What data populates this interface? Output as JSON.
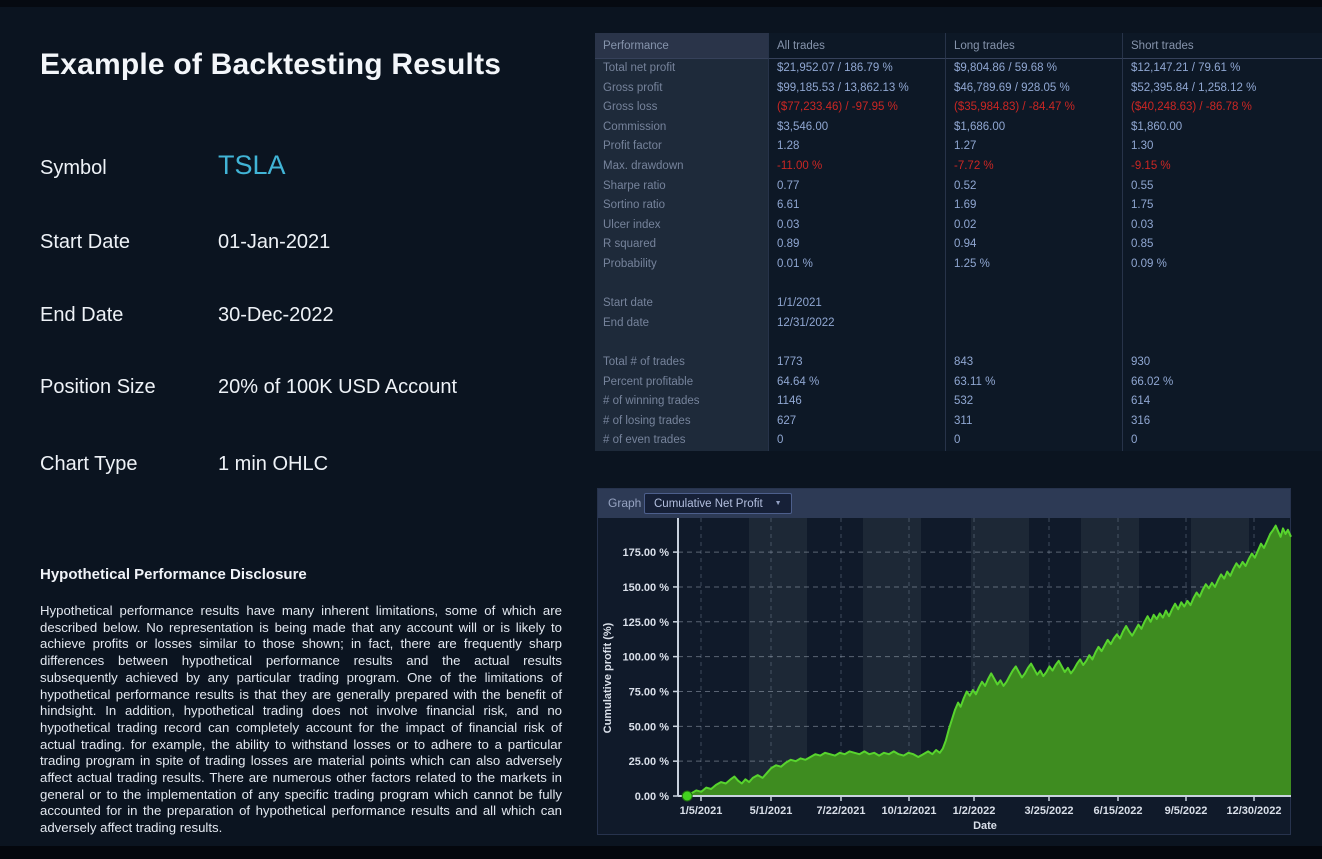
{
  "left_panel": {
    "title": "Example of Backtesting Results",
    "fields": [
      {
        "label": "Symbol",
        "value": "TSLA"
      },
      {
        "label": "Start Date",
        "value": "01-Jan-2021"
      },
      {
        "label": "End Date",
        "value": "30-Dec-2022"
      },
      {
        "label": "Position Size",
        "value": "20% of 100K USD Account"
      },
      {
        "label": "Chart Type",
        "value": "1 min OHLC"
      }
    ],
    "disclosure_title": "Hypothetical Performance Disclosure",
    "disclosure_body": "Hypothetical performance results have many inherent limitations, some of which are described below. No representation is being made that any account will or is likely to achieve profits or losses similar to those shown; in fact, there are frequently sharp differences between hypothetical performance results and the actual results subsequently achieved by any particular trading program. One of the limitations of hypothetical performance results is that they are generally prepared with the benefit of hindsight. In addition, hypothetical trading does not involve financial risk, and no hypothetical trading record can completely account for the impact of financial risk of actual trading. for example, the ability to withstand losses or to adhere to a particular trading program in spite of trading losses are material points which can also adversely affect actual trading results. There are numerous other factors related to the markets in general or to the implementation of any specific trading program which cannot be fully accounted for in the preparation of hypothetical performance results and all which can adversely affect trading results."
  },
  "performance_table": {
    "columns": [
      "Performance",
      "All trades",
      "Long trades",
      "Short trades"
    ],
    "rows": [
      {
        "label": "Total net profit",
        "values": [
          "$21,952.07 / 186.79 %",
          "$9,804.86 / 59.68 %",
          "$12,147.21 / 79.61 %"
        ]
      },
      {
        "label": "Gross profit",
        "values": [
          "$99,185.53 / 13,862.13 %",
          "$46,789.69 / 928.05 %",
          "$52,395.84 / 1,258.12 %"
        ]
      },
      {
        "label": "Gross loss",
        "values": [
          "($77,233.46) / -97.95 %",
          "($35,984.83) / -84.47 %",
          "($40,248.63) / -86.78 %"
        ],
        "red": true
      },
      {
        "label": "Commission",
        "values": [
          "$3,546.00",
          "$1,686.00",
          "$1,860.00"
        ]
      },
      {
        "label": "Profit factor",
        "values": [
          "1.28",
          "1.27",
          "1.30"
        ]
      },
      {
        "label": "Max. drawdown",
        "values": [
          "-11.00 %",
          "-7.72 %",
          "-9.15 %"
        ],
        "red": true
      },
      {
        "label": "Sharpe ratio",
        "values": [
          "0.77",
          "0.52",
          "0.55"
        ]
      },
      {
        "label": "Sortino ratio",
        "values": [
          "6.61",
          "1.69",
          "1.75"
        ]
      },
      {
        "label": "Ulcer index",
        "values": [
          "0.03",
          "0.02",
          "0.03"
        ]
      },
      {
        "label": "R squared",
        "values": [
          "0.89",
          "0.94",
          "0.85"
        ]
      },
      {
        "label": "Probability",
        "values": [
          "0.01 %",
          "1.25 %",
          "0.09 %"
        ]
      },
      {
        "label": "",
        "values": [
          "",
          "",
          ""
        ]
      },
      {
        "label": "Start date",
        "values": [
          "1/1/2021",
          "",
          ""
        ]
      },
      {
        "label": "End date",
        "values": [
          "12/31/2022",
          "",
          ""
        ]
      },
      {
        "label": "",
        "values": [
          "",
          "",
          ""
        ]
      },
      {
        "label": "Total # of trades",
        "values": [
          "1773",
          "843",
          "930"
        ]
      },
      {
        "label": "Percent profitable",
        "values": [
          "64.64 %",
          "63.11 %",
          "66.02 %"
        ]
      },
      {
        "label": "# of winning trades",
        "values": [
          "1146",
          "532",
          "614"
        ]
      },
      {
        "label": "# of losing trades",
        "values": [
          "627",
          "311",
          "316"
        ]
      },
      {
        "label": "# of even trades",
        "values": [
          "0",
          "0",
          "0"
        ]
      }
    ]
  },
  "graph_panel": {
    "label": "Graph",
    "dropdown_value": "Cumulative Net Profit",
    "dropdown_caret": "▼"
  },
  "chart_data": {
    "type": "area",
    "title": "Cumulative Net Profit",
    "xlabel": "Date",
    "ylabel": "Cumulative profit (%)",
    "xticklabels": [
      "1/5/2021",
      "5/1/2021",
      "7/22/2021",
      "10/12/2021",
      "1/2/2022",
      "3/25/2022",
      "6/15/2022",
      "9/5/2022",
      "12/30/2022"
    ],
    "yticklabels": [
      "0.00 %",
      "25.00 %",
      "50.00 %",
      "75.00 %",
      "100.00 %",
      "125.00 %",
      "150.00 %",
      "175.00 %"
    ],
    "ytickvalues": [
      0,
      25,
      50,
      75,
      100,
      125,
      150,
      175
    ],
    "ylim": [
      0,
      199
    ],
    "grid": "dashed",
    "legend": false,
    "x_units": "fraction of plot width, trading days from 1/1/2021 to 12/30/2022",
    "start_marker": {
      "x": 0.015,
      "y": 0
    },
    "end_value_pct": 186.79,
    "series": [
      {
        "name": "Cumulative Net Profit",
        "points": [
          [
            0.015,
            0
          ],
          [
            0.022,
            2
          ],
          [
            0.03,
            4
          ],
          [
            0.038,
            3
          ],
          [
            0.046,
            6
          ],
          [
            0.054,
            5
          ],
          [
            0.062,
            8
          ],
          [
            0.07,
            10
          ],
          [
            0.078,
            9
          ],
          [
            0.086,
            12
          ],
          [
            0.092,
            14
          ],
          [
            0.098,
            11
          ],
          [
            0.104,
            9
          ],
          [
            0.11,
            12
          ],
          [
            0.116,
            10
          ],
          [
            0.122,
            13
          ],
          [
            0.13,
            15
          ],
          [
            0.138,
            13
          ],
          [
            0.146,
            17
          ],
          [
            0.152,
            20
          ],
          [
            0.16,
            22
          ],
          [
            0.168,
            21
          ],
          [
            0.176,
            24
          ],
          [
            0.184,
            26
          ],
          [
            0.192,
            25
          ],
          [
            0.2,
            27
          ],
          [
            0.208,
            26
          ],
          [
            0.216,
            28
          ],
          [
            0.224,
            30
          ],
          [
            0.232,
            29
          ],
          [
            0.24,
            31
          ],
          [
            0.248,
            30
          ],
          [
            0.256,
            29
          ],
          [
            0.264,
            31
          ],
          [
            0.272,
            30
          ],
          [
            0.28,
            32
          ],
          [
            0.288,
            31
          ],
          [
            0.296,
            30
          ],
          [
            0.304,
            32
          ],
          [
            0.312,
            30
          ],
          [
            0.32,
            31
          ],
          [
            0.328,
            29
          ],
          [
            0.336,
            31
          ],
          [
            0.344,
            30
          ],
          [
            0.352,
            32
          ],
          [
            0.36,
            30
          ],
          [
            0.368,
            29
          ],
          [
            0.376,
            31
          ],
          [
            0.384,
            30
          ],
          [
            0.392,
            28
          ],
          [
            0.4,
            30
          ],
          [
            0.408,
            32
          ],
          [
            0.415,
            30
          ],
          [
            0.421,
            33
          ],
          [
            0.427,
            31
          ],
          [
            0.432,
            34
          ],
          [
            0.437,
            40
          ],
          [
            0.442,
            48
          ],
          [
            0.447,
            55
          ],
          [
            0.452,
            62
          ],
          [
            0.457,
            67
          ],
          [
            0.461,
            64
          ],
          [
            0.466,
            70
          ],
          [
            0.471,
            75
          ],
          [
            0.476,
            72
          ],
          [
            0.481,
            76
          ],
          [
            0.486,
            73
          ],
          [
            0.491,
            78
          ],
          [
            0.496,
            82
          ],
          [
            0.501,
            79
          ],
          [
            0.506,
            84
          ],
          [
            0.511,
            88
          ],
          [
            0.516,
            84
          ],
          [
            0.521,
            80
          ],
          [
            0.526,
            83
          ],
          [
            0.531,
            79
          ],
          [
            0.536,
            82
          ],
          [
            0.541,
            86
          ],
          [
            0.546,
            90
          ],
          [
            0.551,
            93
          ],
          [
            0.556,
            89
          ],
          [
            0.561,
            85
          ],
          [
            0.566,
            88
          ],
          [
            0.571,
            92
          ],
          [
            0.576,
            95
          ],
          [
            0.581,
            91
          ],
          [
            0.586,
            87
          ],
          [
            0.591,
            90
          ],
          [
            0.596,
            86
          ],
          [
            0.601,
            89
          ],
          [
            0.606,
            93
          ],
          [
            0.611,
            90
          ],
          [
            0.616,
            94
          ],
          [
            0.621,
            97
          ],
          [
            0.626,
            93
          ],
          [
            0.631,
            89
          ],
          [
            0.636,
            92
          ],
          [
            0.641,
            88
          ],
          [
            0.646,
            91
          ],
          [
            0.651,
            95
          ],
          [
            0.656,
            98
          ],
          [
            0.661,
            94
          ],
          [
            0.666,
            97
          ],
          [
            0.671,
            101
          ],
          [
            0.676,
            98
          ],
          [
            0.681,
            103
          ],
          [
            0.686,
            107
          ],
          [
            0.691,
            104
          ],
          [
            0.696,
            108
          ],
          [
            0.701,
            112
          ],
          [
            0.706,
            109
          ],
          [
            0.711,
            113
          ],
          [
            0.716,
            116
          ],
          [
            0.721,
            113
          ],
          [
            0.726,
            118
          ],
          [
            0.731,
            122
          ],
          [
            0.736,
            118
          ],
          [
            0.741,
            115
          ],
          [
            0.746,
            119
          ],
          [
            0.751,
            123
          ],
          [
            0.756,
            120
          ],
          [
            0.761,
            125
          ],
          [
            0.766,
            129
          ],
          [
            0.771,
            125
          ],
          [
            0.776,
            130
          ],
          [
            0.781,
            127
          ],
          [
            0.786,
            131
          ],
          [
            0.791,
            128
          ],
          [
            0.796,
            133
          ],
          [
            0.801,
            129
          ],
          [
            0.806,
            134
          ],
          [
            0.811,
            138
          ],
          [
            0.816,
            134
          ],
          [
            0.821,
            139
          ],
          [
            0.826,
            136
          ],
          [
            0.831,
            140
          ],
          [
            0.836,
            137
          ],
          [
            0.841,
            142
          ],
          [
            0.846,
            146
          ],
          [
            0.851,
            143
          ],
          [
            0.856,
            148
          ],
          [
            0.861,
            152
          ],
          [
            0.866,
            149
          ],
          [
            0.871,
            153
          ],
          [
            0.876,
            150
          ],
          [
            0.881,
            155
          ],
          [
            0.886,
            159
          ],
          [
            0.891,
            156
          ],
          [
            0.896,
            161
          ],
          [
            0.901,
            158
          ],
          [
            0.906,
            163
          ],
          [
            0.911,
            167
          ],
          [
            0.916,
            164
          ],
          [
            0.921,
            168
          ],
          [
            0.926,
            165
          ],
          [
            0.931,
            170
          ],
          [
            0.936,
            174
          ],
          [
            0.941,
            171
          ],
          [
            0.946,
            176
          ],
          [
            0.951,
            181
          ],
          [
            0.956,
            178
          ],
          [
            0.961,
            183
          ],
          [
            0.966,
            188
          ],
          [
            0.971,
            191
          ],
          [
            0.975,
            194
          ],
          [
            0.979,
            190
          ],
          [
            0.983,
            186
          ],
          [
            0.987,
            192
          ],
          [
            0.991,
            188
          ],
          [
            0.995,
            191
          ],
          [
            1.0,
            186
          ]
        ]
      }
    ]
  },
  "colors": {
    "page_bg": "#0b1420",
    "symbol_accent": "#41b4d6",
    "negative": "#cb2724",
    "table_value": "#90a7d2",
    "table_label": "#76839b",
    "area_fill": "#3e8c20",
    "area_line": "#58d42e",
    "marker": "#43d31f",
    "band": "#1d2836",
    "axis": "#c9d2de"
  }
}
